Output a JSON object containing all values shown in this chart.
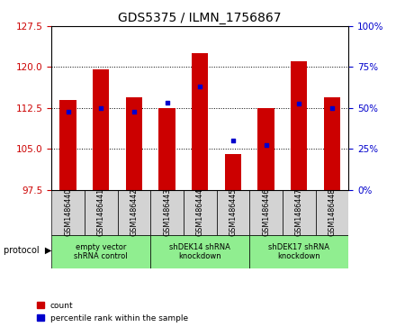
{
  "title": "GDS5375 / ILMN_1756867",
  "samples": [
    "GSM1486440",
    "GSM1486441",
    "GSM1486442",
    "GSM1486443",
    "GSM1486444",
    "GSM1486445",
    "GSM1486446",
    "GSM1486447",
    "GSM1486448"
  ],
  "count_values": [
    114.0,
    119.5,
    114.5,
    112.5,
    122.5,
    104.0,
    112.5,
    121.0,
    114.5
  ],
  "percentile_values": [
    47.5,
    50.0,
    47.5,
    53.0,
    63.0,
    30.0,
    27.5,
    52.5,
    50.0
  ],
  "ylim_left": [
    97.5,
    127.5
  ],
  "ylim_right": [
    0,
    100
  ],
  "yticks_left": [
    97.5,
    105,
    112.5,
    120,
    127.5
  ],
  "yticks_right": [
    0,
    25,
    50,
    75,
    100
  ],
  "groups": [
    {
      "label": "empty vector\nshRNA control",
      "start": 0,
      "end": 3
    },
    {
      "label": "shDEK14 shRNA\nknockdown",
      "start": 3,
      "end": 6
    },
    {
      "label": "shDEK17 shRNA\nknockdown",
      "start": 6,
      "end": 9
    }
  ],
  "bar_color": "#cc0000",
  "dot_color": "#0000cc",
  "bar_width": 0.5,
  "bg_color": "#ffffff",
  "gray_color": "#d3d3d3",
  "green_color": "#90ee90",
  "ylabel_left_color": "#cc0000",
  "ylabel_right_color": "#0000cc",
  "title_fontsize": 10
}
